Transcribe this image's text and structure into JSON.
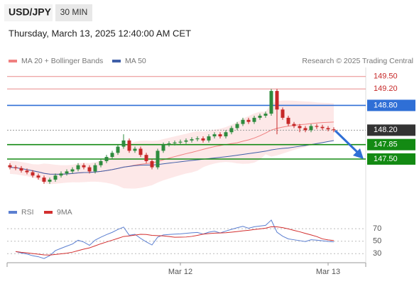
{
  "chart_data": {
    "type": "candlestick",
    "symbol": "USD/JPY",
    "timeframe": "30 MIN",
    "subtitle": "Thursday, March 13, 2025 12:40:00 AM CET",
    "source": "Research © 2025 Trading Central",
    "indicators": [
      {
        "name": "MA 20 + Bollinger Bands",
        "color": "#f08080"
      },
      {
        "name": "MA 50",
        "color": "#3f5fa8"
      }
    ],
    "categories": [
      null,
      null,
      null,
      null,
      null,
      null,
      null,
      null,
      null,
      null,
      null,
      null,
      null,
      null,
      null,
      null,
      null,
      null,
      null,
      null,
      null,
      null,
      null,
      null,
      null,
      null,
      null,
      null,
      null,
      null,
      "Mar 12",
      null,
      null,
      null,
      null,
      null,
      null,
      null,
      null,
      null,
      null,
      null,
      null,
      null,
      null,
      null,
      null,
      null,
      null,
      null,
      null,
      null,
      null,
      null,
      null,
      null,
      "Mar 13",
      null
    ],
    "open": [
      147.35,
      147.3,
      147.28,
      147.22,
      147.18,
      147.1,
      147.05,
      146.95,
      147.0,
      147.1,
      147.15,
      147.2,
      147.25,
      147.35,
      147.3,
      147.2,
      147.35,
      147.45,
      147.55,
      147.65,
      147.8,
      147.95,
      147.7,
      147.75,
      147.6,
      147.45,
      147.3,
      147.7,
      147.85,
      147.88,
      147.9,
      147.92,
      147.95,
      147.98,
      148.0,
      147.95,
      148.05,
      148.1,
      148.05,
      148.15,
      148.25,
      148.35,
      148.45,
      148.4,
      148.5,
      148.55,
      148.6,
      149.15,
      148.7,
      148.5,
      148.35,
      148.3,
      148.25,
      148.2,
      148.3,
      148.28,
      148.25,
      148.22
    ],
    "high": [
      147.4,
      147.35,
      147.33,
      147.27,
      147.23,
      147.15,
      147.1,
      147.05,
      147.15,
      147.2,
      147.25,
      147.3,
      147.4,
      147.4,
      147.35,
      147.4,
      147.5,
      147.6,
      147.7,
      147.85,
      148.1,
      148.0,
      147.8,
      147.8,
      147.65,
      147.5,
      147.75,
      147.9,
      147.93,
      147.95,
      147.97,
      148.0,
      148.03,
      148.05,
      148.05,
      148.1,
      148.15,
      148.15,
      148.2,
      148.3,
      148.4,
      148.5,
      148.5,
      148.55,
      148.6,
      148.65,
      149.2,
      149.2,
      148.75,
      148.55,
      148.4,
      148.35,
      148.3,
      148.35,
      148.35,
      148.33,
      148.3,
      148.27
    ],
    "low": [
      147.25,
      147.23,
      147.17,
      147.13,
      147.05,
      147.0,
      146.9,
      146.9,
      146.95,
      147.05,
      147.1,
      147.15,
      147.2,
      147.25,
      147.15,
      147.15,
      147.3,
      147.4,
      147.5,
      147.6,
      147.75,
      147.65,
      147.65,
      147.55,
      147.4,
      147.25,
      147.25,
      147.65,
      147.8,
      147.83,
      147.85,
      147.87,
      147.9,
      147.93,
      147.9,
      147.9,
      148.0,
      148.0,
      148.0,
      148.1,
      148.2,
      148.3,
      148.35,
      148.35,
      148.45,
      148.5,
      148.55,
      148.1,
      148.45,
      148.3,
      148.25,
      148.15,
      148.15,
      148.15,
      148.23,
      148.2,
      148.17,
      148.15
    ],
    "close": [
      147.3,
      147.28,
      147.22,
      147.18,
      147.1,
      147.05,
      146.95,
      147.0,
      147.1,
      147.15,
      147.2,
      147.25,
      147.35,
      147.3,
      147.2,
      147.35,
      147.45,
      147.55,
      147.65,
      147.8,
      147.95,
      147.7,
      147.75,
      147.6,
      147.45,
      147.3,
      147.7,
      147.85,
      147.88,
      147.9,
      147.92,
      147.95,
      147.98,
      148.0,
      147.95,
      148.05,
      148.1,
      148.05,
      148.15,
      148.25,
      148.35,
      148.45,
      148.4,
      148.5,
      148.55,
      148.6,
      149.15,
      148.7,
      148.5,
      148.35,
      148.3,
      148.25,
      148.2,
      148.3,
      148.28,
      148.25,
      148.22,
      148.2
    ],
    "up_color": "#2e8b3e",
    "down_color": "#c62828",
    "ylim": [
      146.45,
      149.72
    ],
    "levels": [
      {
        "value": 149.5,
        "label": "149.50",
        "color": "#e88a8a",
        "text_color": "#c62828",
        "boxed": false,
        "dash": false
      },
      {
        "value": 149.2,
        "label": "149.20",
        "color": "#e88a8a",
        "text_color": "#c62828",
        "boxed": false,
        "dash": false
      },
      {
        "value": 148.8,
        "label": "148.80",
        "color": "#2f6fd6",
        "text_color": "#ffffff",
        "boxed": true,
        "dash": false
      },
      {
        "value": 148.2,
        "label": "148.20",
        "color": "#333333",
        "text_color": "#ffffff",
        "boxed": true,
        "dash": true
      },
      {
        "value": 147.85,
        "label": "147.85",
        "color": "#138a13",
        "text_color": "#ffffff",
        "boxed": true,
        "dash": false
      },
      {
        "value": 147.5,
        "label": "147.50",
        "color": "#138a13",
        "text_color": "#ffffff",
        "boxed": true,
        "dash": false
      }
    ],
    "rsi": {
      "series": [
        {
          "name": "RSI",
          "color": "#5b7fd1"
        },
        {
          "name": "9MA",
          "color": "#d32f2f"
        }
      ],
      "ylim": [
        20,
        85
      ],
      "yticks": [
        70,
        50,
        30
      ]
    }
  }
}
